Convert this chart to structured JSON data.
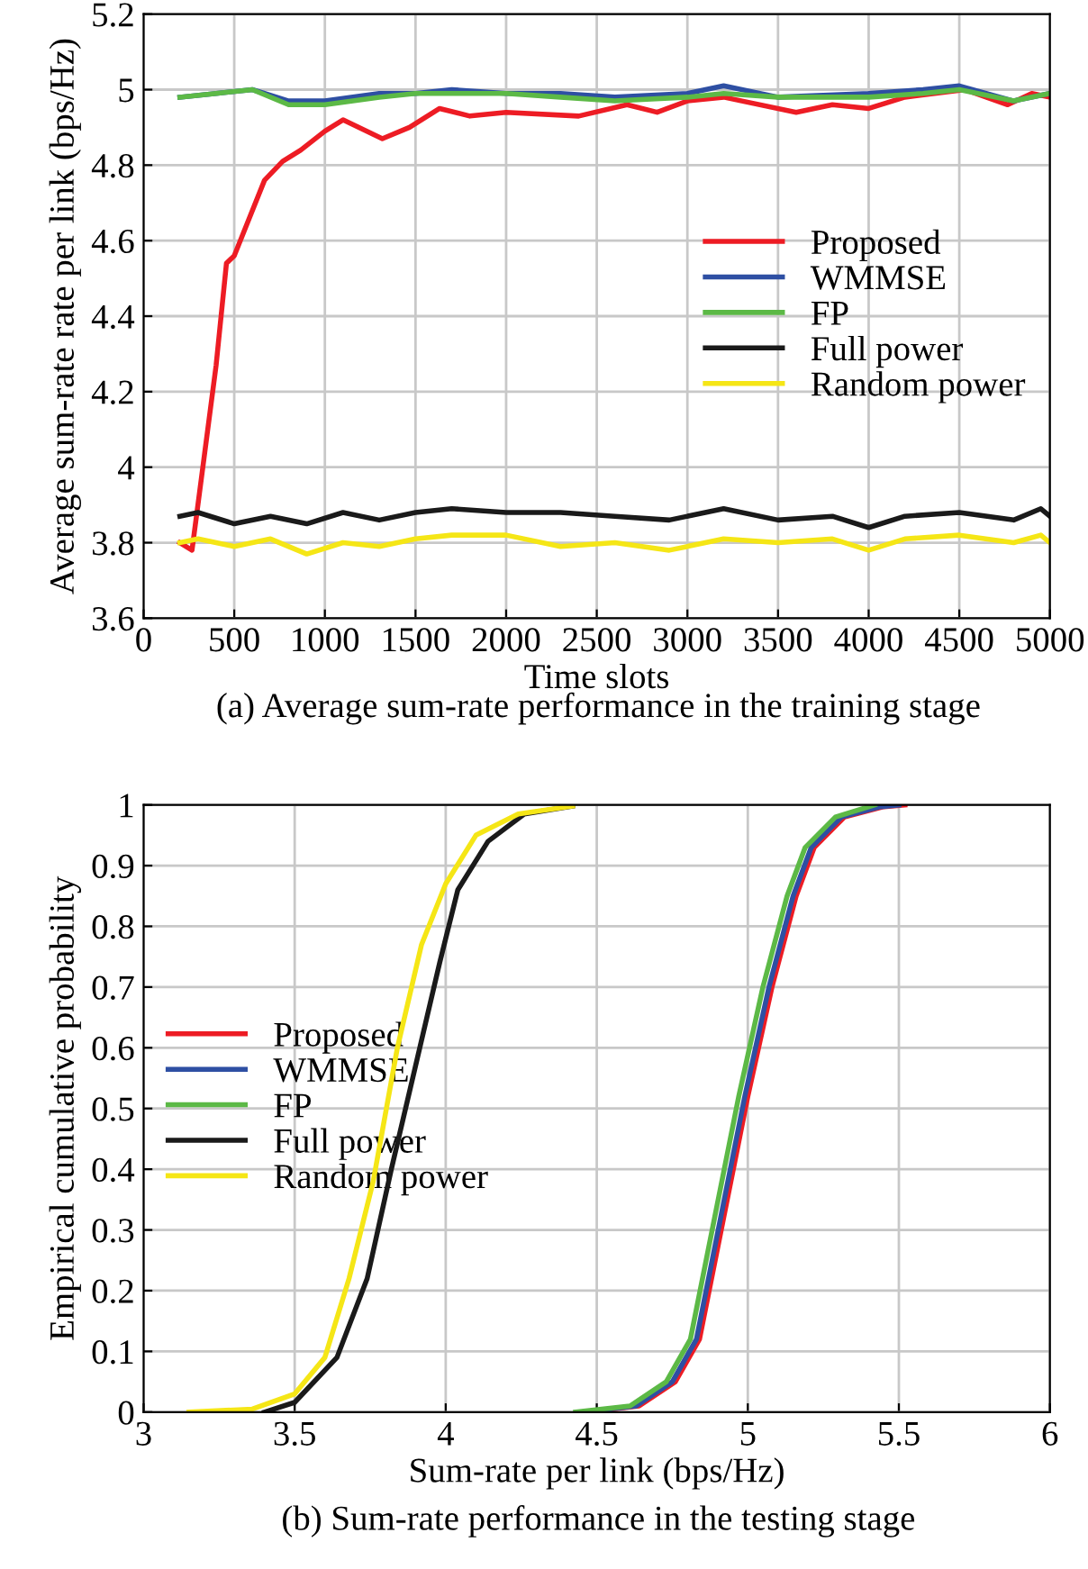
{
  "chart_data": [
    {
      "type": "line",
      "xlabel": "Time slots",
      "ylabel": "Average sum-rate rate per link (bps/Hz)",
      "annotations": [
        "(a) Average sum-rate performance in the training stage"
      ],
      "xlim": [
        0,
        5000
      ],
      "ylim": [
        3.6,
        5.2
      ],
      "xticks": [
        0,
        500,
        1000,
        1500,
        2000,
        2500,
        3000,
        3500,
        4000,
        4500,
        5000
      ],
      "yticks": [
        3.6,
        3.8,
        4,
        4.2,
        4.4,
        4.6,
        4.8,
        5,
        5.2
      ],
      "grid": true,
      "legend": "center right",
      "marker": "none",
      "line_style": "solid",
      "series": [
        {
          "name": "Proposed",
          "color": "#ed1c24",
          "x": [
            200,
            267,
            400,
            457,
            500,
            667,
            767,
            867,
            1000,
            1100,
            1317,
            1467,
            1633,
            1800,
            2000,
            2400,
            2667,
            2833,
            3000,
            3200,
            3600,
            3800,
            4000,
            4200,
            4533,
            4767,
            4900,
            5000
          ],
          "values": [
            3.8,
            3.78,
            4.27,
            4.54,
            4.56,
            4.76,
            4.81,
            4.84,
            4.89,
            4.92,
            4.87,
            4.9,
            4.95,
            4.93,
            4.94,
            4.93,
            4.96,
            4.94,
            4.97,
            4.98,
            4.94,
            4.96,
            4.95,
            4.98,
            5.0,
            4.96,
            4.99,
            4.98
          ]
        },
        {
          "name": "WMMSE",
          "color": "#2e4fa3",
          "x": [
            200,
            400,
            600,
            800,
            1000,
            1300,
            1500,
            1700,
            2000,
            2300,
            2600,
            3000,
            3200,
            3500,
            4000,
            4300,
            4500,
            4800,
            5000
          ],
          "values": [
            4.98,
            4.99,
            5.0,
            4.97,
            4.97,
            4.99,
            4.99,
            5.0,
            4.99,
            4.99,
            4.98,
            4.99,
            5.01,
            4.98,
            4.99,
            5.0,
            5.01,
            4.97,
            4.99
          ]
        },
        {
          "name": "FP",
          "color": "#5cb946",
          "x": [
            200,
            400,
            600,
            800,
            1000,
            1300,
            1500,
            1700,
            2000,
            2300,
            2600,
            3000,
            3200,
            3500,
            4000,
            4300,
            4500,
            4800,
            5000
          ],
          "values": [
            4.98,
            4.99,
            5.0,
            4.96,
            4.96,
            4.98,
            4.99,
            4.99,
            4.99,
            4.98,
            4.97,
            4.98,
            4.99,
            4.98,
            4.98,
            4.99,
            5.0,
            4.97,
            4.99
          ]
        },
        {
          "name": "Full power",
          "color": "#1a1a1a",
          "x": [
            200,
            300,
            500,
            700,
            900,
            1100,
            1300,
            1500,
            1700,
            2000,
            2300,
            2600,
            2900,
            3200,
            3500,
            3800,
            4000,
            4200,
            4500,
            4800,
            4950,
            5000
          ],
          "values": [
            3.87,
            3.88,
            3.85,
            3.87,
            3.85,
            3.88,
            3.86,
            3.88,
            3.89,
            3.88,
            3.88,
            3.87,
            3.86,
            3.89,
            3.86,
            3.87,
            3.84,
            3.87,
            3.88,
            3.86,
            3.89,
            3.87
          ]
        },
        {
          "name": "Random power",
          "color": "#f5e616",
          "x": [
            200,
            300,
            500,
            700,
            900,
            1100,
            1300,
            1500,
            1700,
            2000,
            2300,
            2600,
            2900,
            3200,
            3500,
            3800,
            4000,
            4200,
            4500,
            4800,
            4950,
            5000
          ],
          "values": [
            3.8,
            3.81,
            3.79,
            3.81,
            3.77,
            3.8,
            3.79,
            3.81,
            3.82,
            3.82,
            3.79,
            3.8,
            3.78,
            3.81,
            3.8,
            3.81,
            3.78,
            3.81,
            3.82,
            3.8,
            3.82,
            3.8
          ]
        }
      ]
    },
    {
      "type": "line",
      "xlabel": "Sum-rate per link (bps/Hz)",
      "ylabel": "Empirical cumulative probability",
      "annotations": [
        "(b) Sum-rate performance in the testing stage"
      ],
      "xlim": [
        3,
        6
      ],
      "ylim": [
        0,
        1
      ],
      "xticks": [
        3,
        3.5,
        4,
        4.5,
        5,
        5.5,
        6
      ],
      "yticks": [
        0,
        0.1,
        0.2,
        0.3,
        0.4,
        0.5,
        0.6,
        0.7,
        0.8,
        0.9,
        1
      ],
      "grid": true,
      "legend": "center left",
      "marker": "none",
      "line_style": "solid",
      "series": [
        {
          "name": "Proposed",
          "color": "#ed1c24",
          "x": [
            4.46,
            4.64,
            4.76,
            4.84,
            4.92,
            5.0,
            5.08,
            5.16,
            5.22,
            5.32,
            5.45,
            5.52
          ],
          "values": [
            0,
            0.01,
            0.05,
            0.12,
            0.32,
            0.52,
            0.7,
            0.85,
            0.93,
            0.98,
            0.997,
            1.0
          ]
        },
        {
          "name": "WMMSE",
          "color": "#2e4fa3",
          "x": [
            4.45,
            4.63,
            4.75,
            4.83,
            4.91,
            4.99,
            5.07,
            5.15,
            5.21,
            5.31,
            5.44,
            5.5
          ],
          "values": [
            0,
            0.01,
            0.05,
            0.12,
            0.32,
            0.52,
            0.7,
            0.85,
            0.93,
            0.98,
            0.997,
            1.0
          ]
        },
        {
          "name": "FP",
          "color": "#5cb946",
          "x": [
            4.43,
            4.61,
            4.73,
            4.81,
            4.89,
            4.97,
            5.05,
            5.13,
            5.19,
            5.29,
            5.42
          ],
          "values": [
            0,
            0.01,
            0.05,
            0.12,
            0.32,
            0.52,
            0.7,
            0.85,
            0.93,
            0.98,
            1.0
          ]
        },
        {
          "name": "Full power",
          "color": "#1a1a1a",
          "x": [
            3.4,
            3.5,
            3.64,
            3.74,
            3.82,
            3.9,
            3.98,
            4.04,
            4.14,
            4.26,
            4.42
          ],
          "values": [
            0,
            0.016,
            0.09,
            0.22,
            0.4,
            0.57,
            0.74,
            0.86,
            0.94,
            0.985,
            0.998
          ]
        },
        {
          "name": "Random power",
          "color": "#f5e616",
          "x": [
            3.15,
            3.36,
            3.5,
            3.6,
            3.68,
            3.76,
            3.84,
            3.92,
            4.0,
            4.1,
            4.24,
            4.42
          ],
          "values": [
            0,
            0.005,
            0.03,
            0.09,
            0.22,
            0.38,
            0.6,
            0.77,
            0.87,
            0.95,
            0.985,
            0.998
          ]
        }
      ]
    }
  ]
}
